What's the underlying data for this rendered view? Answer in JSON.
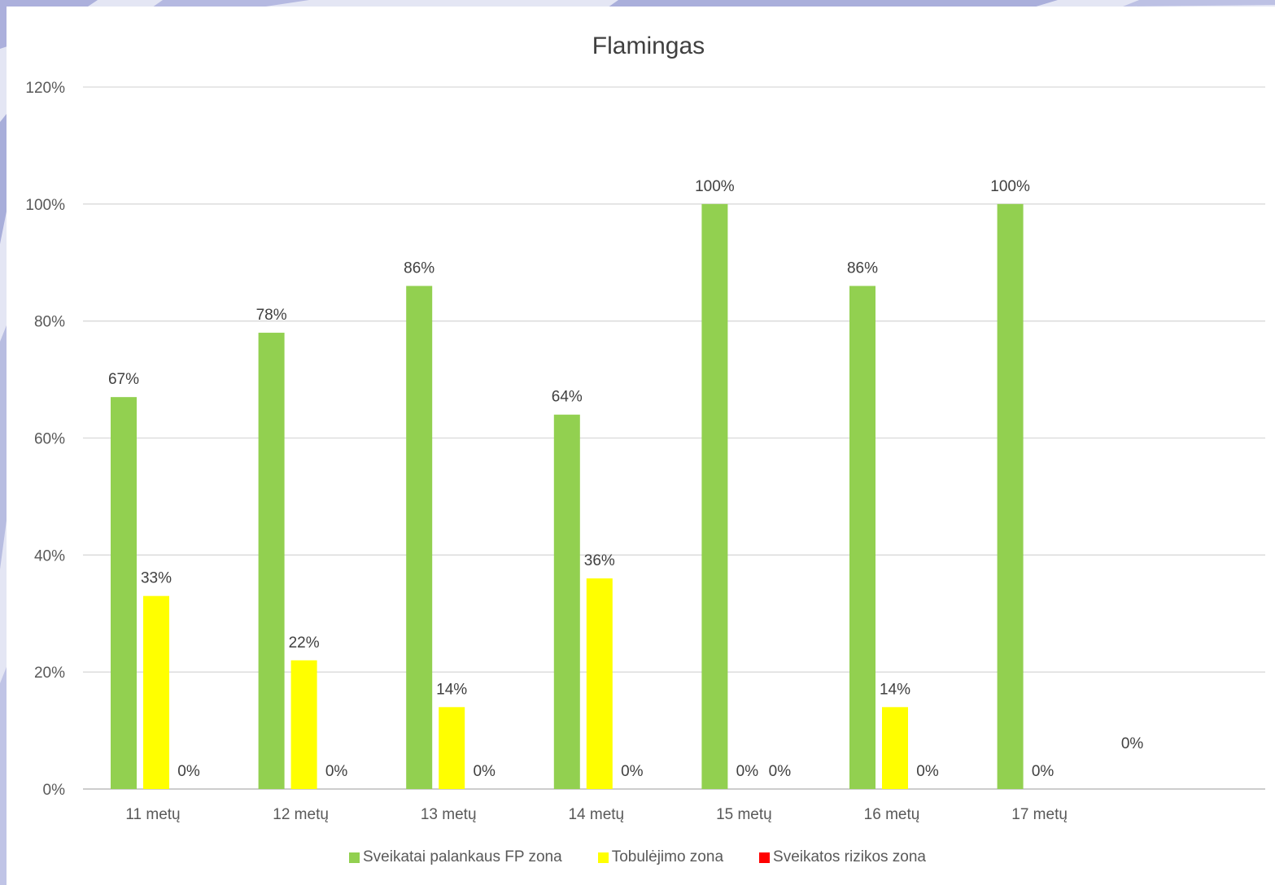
{
  "chart_data": {
    "type": "bar",
    "title": "Flamingas",
    "categories": [
      "11 metų",
      "12 metų",
      "13 metų",
      "14 metų",
      "15 metų",
      "16 metų",
      "17 metų"
    ],
    "series": [
      {
        "name": "Sveikatai palankaus FP zona",
        "color": "#92d050",
        "values": [
          67,
          78,
          86,
          64,
          100,
          86,
          100
        ]
      },
      {
        "name": "Tobulėjimo zona",
        "color": "#ffff00",
        "values": [
          33,
          22,
          14,
          36,
          0,
          14,
          0
        ]
      },
      {
        "name": "Sveikatos rizikos zona",
        "color": "#ff0000",
        "values": [
          0,
          0,
          0,
          0,
          0,
          0,
          null
        ]
      }
    ],
    "data_labels": [
      [
        "67%",
        "78%",
        "86%",
        "64%",
        "100%",
        "86%",
        "100%"
      ],
      [
        "33%",
        "22%",
        "14%",
        "36%",
        "0%",
        "14%",
        "0%"
      ],
      [
        "0%",
        "0%",
        "0%",
        "0%",
        "0%",
        "0%",
        "0%"
      ]
    ],
    "y_ticks": [
      "0%",
      "20%",
      "40%",
      "60%",
      "80%",
      "100%",
      "120%"
    ],
    "ylim": [
      0,
      120
    ],
    "grid": true,
    "legend_position": "bottom"
  }
}
